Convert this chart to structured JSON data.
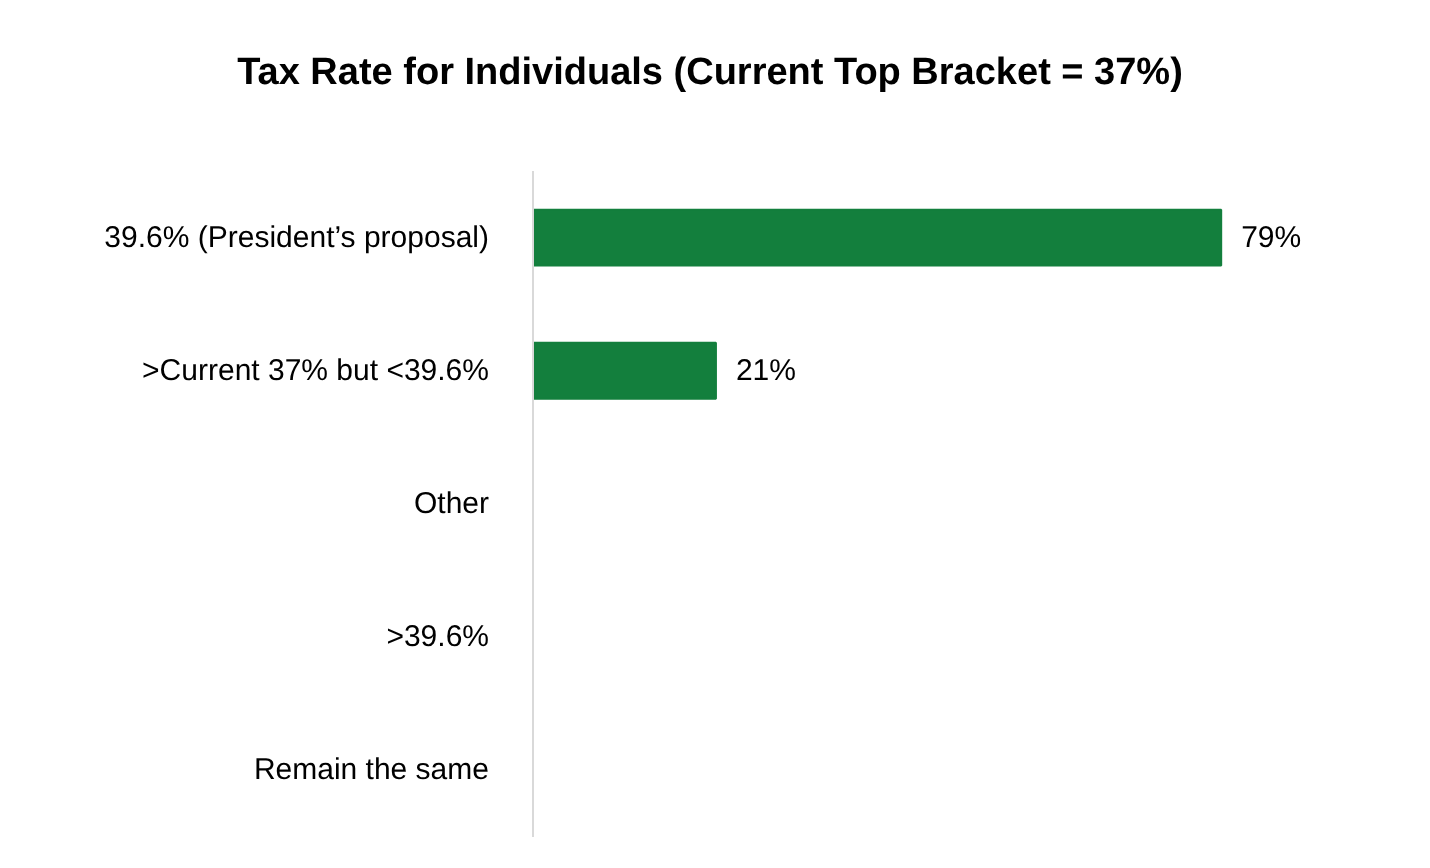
{
  "chart_data": {
    "type": "bar",
    "orientation": "horizontal",
    "title": "Tax Rate for Individuals (Current Top Bracket = 37%)",
    "categories": [
      "39.6% (President’s proposal)",
      ">Current 37% but <39.6%",
      "Other",
      ">39.6%",
      "Remain the same"
    ],
    "values": [
      79,
      21,
      0,
      0,
      0
    ],
    "value_labels": [
      "79%",
      "21%",
      null,
      null,
      null
    ],
    "color": "#137f3d"
  }
}
